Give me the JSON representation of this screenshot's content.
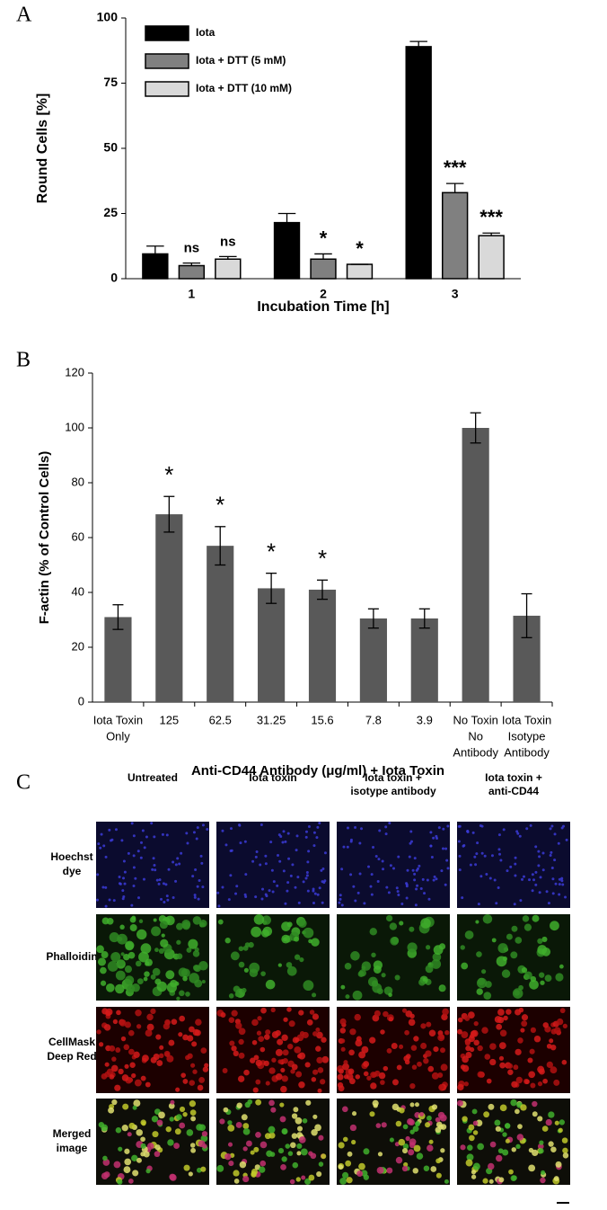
{
  "chart_data": [
    {
      "type": "bar",
      "label": "A",
      "categories": [
        "1",
        "2",
        "3"
      ],
      "series": [
        {
          "name": "Iota",
          "color": "#000000",
          "values": [
            9.5,
            21.5,
            89
          ],
          "errors": [
            3,
            3.5,
            2
          ]
        },
        {
          "name": "Iota + DTT (5 mM)",
          "color": "#808080",
          "values": [
            5,
            7.5,
            33
          ],
          "errors": [
            1,
            2,
            3.5
          ],
          "annotations": [
            "ns",
            "*",
            "***"
          ]
        },
        {
          "name": "Iota + DTT (10 mM)",
          "color": "#d9d9d9",
          "values": [
            7.5,
            5.5,
            16.5
          ],
          "errors": [
            1,
            0,
            1
          ],
          "annotations": [
            "ns",
            "*",
            "***"
          ]
        }
      ],
      "xlabel": "Incubation Time [h]",
      "ylabel": "Round Cells [%]",
      "ylim": [
        0,
        100
      ],
      "yticks": [
        0,
        25,
        50,
        75,
        100
      ],
      "legend": "upper left"
    },
    {
      "type": "bar",
      "label": "B",
      "categories": [
        [
          "Iota Toxin",
          "Only"
        ],
        [
          "125"
        ],
        [
          "62.5"
        ],
        [
          "31.25"
        ],
        [
          "15.6"
        ],
        [
          "7.8"
        ],
        [
          "3.9"
        ],
        [
          "No Toxin",
          "No",
          "Antibody"
        ],
        [
          "Iota Toxin",
          "Isotype",
          "Antibody"
        ]
      ],
      "values": [
        31,
        68.5,
        57,
        41.5,
        41,
        30.5,
        30.5,
        100,
        31.5
      ],
      "errors": [
        4.5,
        6.5,
        7,
        5.5,
        3.5,
        3.5,
        3.5,
        5.5,
        8
      ],
      "annotations": [
        null,
        "*",
        "*",
        "*",
        "*",
        null,
        null,
        null,
        null
      ],
      "color": "#595959",
      "xlabel": "Anti-CD44 Antibody (μg/ml) + Iota Toxin",
      "ylabel": "F-actin (% of Control Cells)",
      "ylim": [
        0,
        120
      ],
      "yticks": [
        0,
        20,
        40,
        60,
        80,
        100,
        120
      ]
    }
  ],
  "panel_c": {
    "label": "C",
    "columns": [
      [
        "Untreated"
      ],
      [
        "Iota toxin"
      ],
      [
        "Iota toxin +",
        "isotype antibody"
      ],
      [
        "Iota toxin +",
        "anti-CD44"
      ]
    ],
    "rows": [
      [
        "Hoechst",
        "dye"
      ],
      [
        "Phalloidin"
      ],
      [
        "CellMask",
        "Deep Red"
      ],
      [
        "Merged",
        "image"
      ]
    ]
  }
}
